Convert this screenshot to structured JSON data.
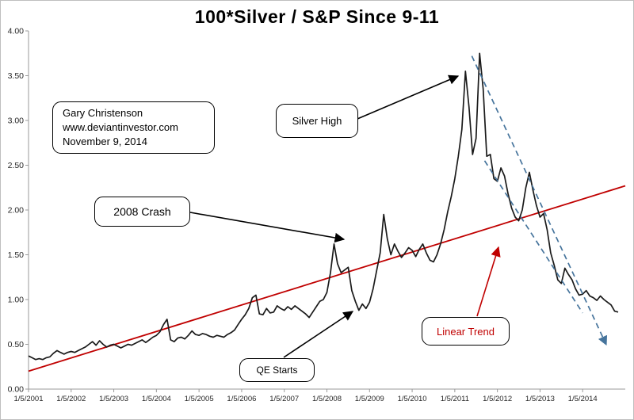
{
  "title": "100*Silver / S&P Since 9-11",
  "annotations": {
    "credit_line1": "Gary Christenson",
    "credit_line2": "www.deviantinvestor.com",
    "credit_line3": "November 9, 2014",
    "silver_high": "Silver High",
    "crash_2008": "2008 Crash",
    "qe_starts": "QE Starts",
    "linear_trend": "Linear Trend"
  },
  "colors": {
    "series": "#1a1a1a",
    "trend": "#c00000",
    "channel": "#46749c",
    "axis": "#9a9a9a",
    "trend_label": "#c00000"
  },
  "chart_data": {
    "type": "line",
    "title": "100*Silver / S&P Since 9-11",
    "xlabel": "",
    "ylabel": "",
    "grid": false,
    "legend": "none",
    "ylim": [
      0,
      4
    ],
    "xlim": [
      2001,
      2015
    ],
    "y_ticks": [
      "0.00",
      "0.50",
      "1.00",
      "1.50",
      "2.00",
      "2.50",
      "3.00",
      "3.50",
      "4.00"
    ],
    "x_tick_labels": [
      "1/5/2001",
      "1/5/2002",
      "1/5/2003",
      "1/5/2004",
      "1/5/2005",
      "1/5/2006",
      "1/5/2007",
      "1/5/2008",
      "1/5/2009",
      "1/5/2010",
      "1/5/2011",
      "1/5/2012",
      "1/5/2013",
      "1/5/2014"
    ],
    "series": {
      "name": "100*Silver / S&P",
      "x0": 2001.0,
      "dx": 0.0833333,
      "values": [
        0.37,
        0.35,
        0.33,
        0.34,
        0.33,
        0.35,
        0.36,
        0.4,
        0.43,
        0.41,
        0.39,
        0.41,
        0.42,
        0.41,
        0.43,
        0.45,
        0.47,
        0.5,
        0.53,
        0.49,
        0.54,
        0.5,
        0.47,
        0.49,
        0.5,
        0.48,
        0.46,
        0.48,
        0.5,
        0.49,
        0.51,
        0.53,
        0.55,
        0.52,
        0.55,
        0.58,
        0.6,
        0.64,
        0.72,
        0.78,
        0.55,
        0.53,
        0.57,
        0.58,
        0.56,
        0.6,
        0.65,
        0.61,
        0.6,
        0.62,
        0.61,
        0.59,
        0.58,
        0.6,
        0.59,
        0.58,
        0.61,
        0.63,
        0.66,
        0.72,
        0.78,
        0.83,
        0.9,
        1.02,
        1.05,
        0.84,
        0.83,
        0.9,
        0.85,
        0.86,
        0.93,
        0.9,
        0.88,
        0.92,
        0.89,
        0.93,
        0.9,
        0.87,
        0.84,
        0.8,
        0.86,
        0.92,
        0.98,
        1.0,
        1.08,
        1.3,
        1.62,
        1.4,
        1.3,
        1.33,
        1.36,
        1.1,
        0.98,
        0.88,
        0.95,
        0.9,
        0.97,
        1.12,
        1.32,
        1.52,
        1.95,
        1.68,
        1.5,
        1.62,
        1.54,
        1.47,
        1.52,
        1.58,
        1.55,
        1.48,
        1.56,
        1.62,
        1.52,
        1.44,
        1.42,
        1.5,
        1.62,
        1.78,
        1.98,
        2.15,
        2.35,
        2.6,
        2.9,
        3.55,
        3.15,
        2.62,
        2.8,
        3.75,
        3.35,
        2.6,
        2.62,
        2.35,
        2.32,
        2.47,
        2.38,
        2.18,
        2.02,
        1.92,
        1.88,
        2.0,
        2.25,
        2.42,
        2.22,
        2.05,
        1.92,
        1.96,
        1.78,
        1.52,
        1.38,
        1.22,
        1.18,
        1.35,
        1.28,
        1.22,
        1.12,
        1.05,
        1.06,
        1.1,
        1.04,
        1.02,
        0.99,
        1.04,
        1.0,
        0.97,
        0.94,
        0.87,
        0.86
      ]
    },
    "trend_line": {
      "x1": 2001.0,
      "y1": 0.2,
      "x2": 2015.0,
      "y2": 2.27
    },
    "channel_lines": [
      {
        "x1": 2011.4,
        "y1": 3.72,
        "x2": 2014.55,
        "y2": 0.5,
        "arrow": true
      },
      {
        "x1": 2011.7,
        "y1": 2.55,
        "x2": 2014.0,
        "y2": 0.85,
        "arrow": false
      }
    ]
  }
}
